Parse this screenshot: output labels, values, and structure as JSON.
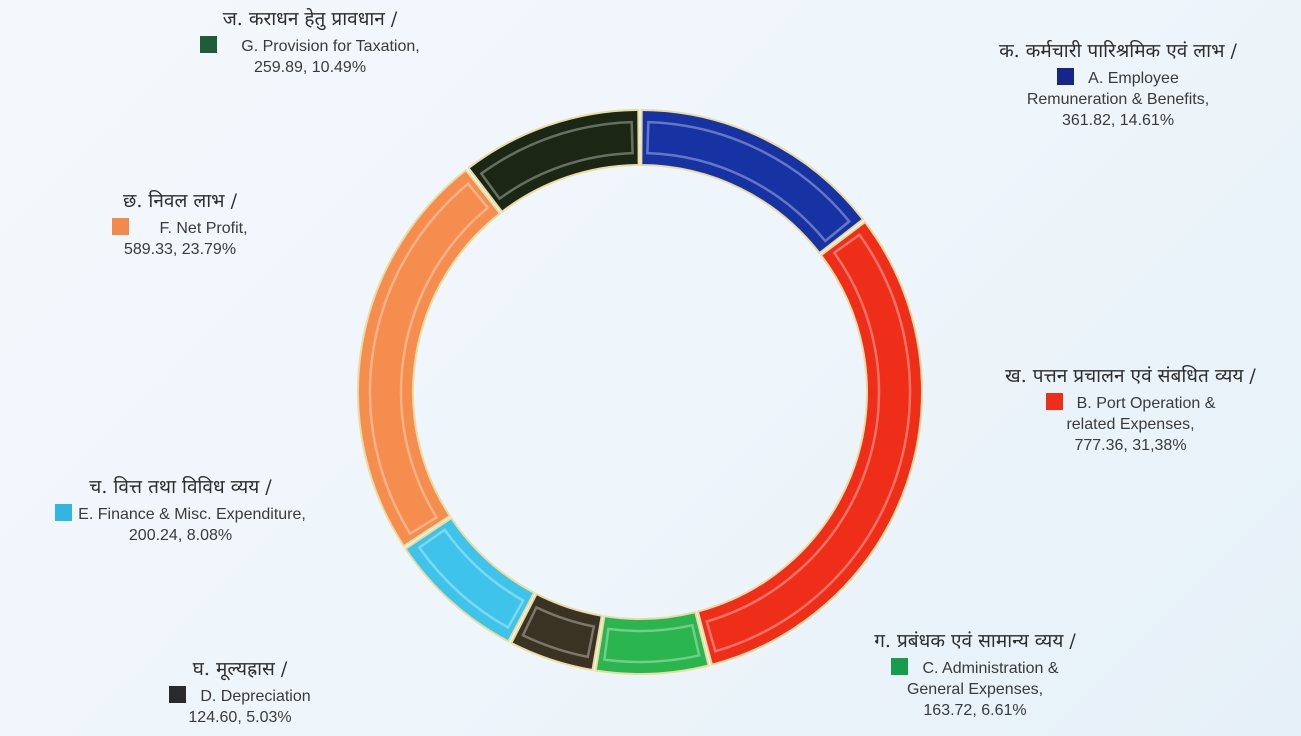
{
  "chart_data": {
    "type": "pie",
    "variant": "donut",
    "title": "",
    "slices": [
      {
        "key": "A",
        "hindi": "क. कर्मचारी पारिश्रमिक एवं लाभ /",
        "label": "A. Employee Remuneration & Benefits,",
        "label_lines": [
          "A. Employee",
          "Remuneration & Benefits,"
        ],
        "value": 361.82,
        "percent": 14.61,
        "value_text": "361.82, 14.61%",
        "color": "#1733a3"
      },
      {
        "key": "B",
        "hindi": "ख. पत्तन प्रचालन एवं संबधित व्यय /",
        "label": "B. Port Operation & related Expenses,",
        "label_lines": [
          "B. Port Operation &",
          "related Expenses,"
        ],
        "value": 777.36,
        "percent": 31.38,
        "value_text": "777.36, 31,38%",
        "color": "#ef2e1a"
      },
      {
        "key": "C",
        "hindi": "ग. प्रबंधक एवं सामान्य व्यय /",
        "label": "C. Administration & General Expenses,",
        "label_lines": [
          "C. Administration &",
          "General Expenses,"
        ],
        "value": 163.72,
        "percent": 6.61,
        "value_text": "163.72, 6.61%",
        "color": "#2bb54e"
      },
      {
        "key": "D",
        "hindi": "घ. मूल्यह्रास /",
        "label": "D. Depreciation",
        "label_lines": [
          "D. Depreciation"
        ],
        "value": 124.6,
        "percent": 5.03,
        "value_text": "124.60, 5.03%",
        "color": "#3a3222"
      },
      {
        "key": "E",
        "hindi": "च. वित्त तथा विविध व्यय /",
        "label": "E. Finance & Misc. Expenditure,",
        "label_lines": [
          "E. Finance & Misc. Expenditure,"
        ],
        "value": 200.24,
        "percent": 8.08,
        "value_text": "200.24, 8.08%",
        "color": "#3ec3ea"
      },
      {
        "key": "F",
        "hindi": "छ. निवल लाभ /",
        "label": "F. Net Profit,",
        "label_lines": [
          "F. Net Profit,"
        ],
        "value": 589.33,
        "percent": 23.79,
        "value_text": "589.33, 23.79%",
        "color": "#f58d4e"
      },
      {
        "key": "G",
        "hindi": "ज. कराधन हेतु प्रावधान /",
        "label": "G. Provision for Taxation,",
        "label_lines": [
          "G. Provision for Taxation,"
        ],
        "value": 259.89,
        "percent": 10.49,
        "value_text": "259.89, 10.49%",
        "color": "#1b2615"
      }
    ],
    "legend_swatch_colors": {
      "A": "#15258a",
      "B": "#ef2e1a",
      "C": "#169c4a",
      "D": "#2a2a2a",
      "E": "#2fb7e2",
      "F": "#f28a4b",
      "G": "#1e5c37"
    },
    "start": "top",
    "direction": "clockwise"
  }
}
